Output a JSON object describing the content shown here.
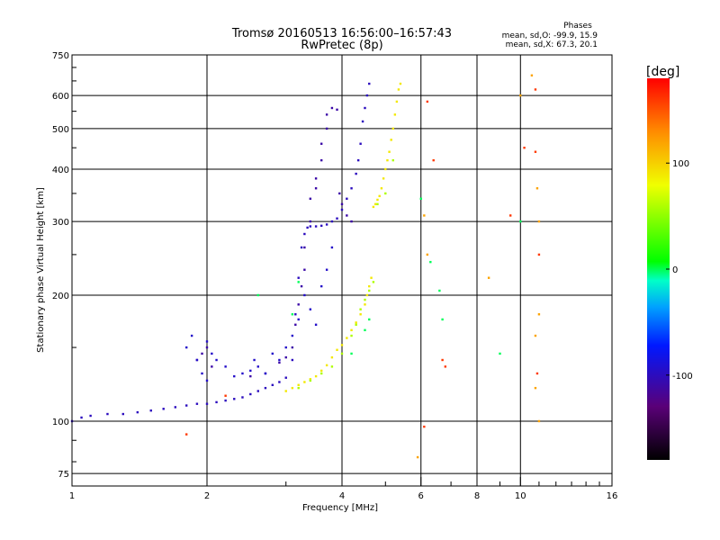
{
  "chart_data": {
    "type": "scatter",
    "title": "Tromsø 20160513 16:56:00–16:57:43",
    "subtitle": "RwPretec (8p)",
    "xlabel": "Frequency [MHz]",
    "ylabel": "Stationary phase Virtual Height [km]",
    "x_scale": "log2",
    "y_scale": "log",
    "xlim": [
      1,
      16
    ],
    "ylim": [
      70,
      750
    ],
    "grid": true,
    "x_ticks": [
      1,
      2,
      4,
      6,
      8,
      10,
      16
    ],
    "x_tick_labels": [
      "1",
      "2",
      "4",
      "6",
      "8",
      "10",
      "16"
    ],
    "y_ticks": [
      75,
      100,
      200,
      300,
      400,
      500,
      600,
      750
    ],
    "y_tick_labels": [
      "75",
      "100",
      "200",
      "300",
      "400",
      "500",
      "600",
      "750"
    ],
    "stats": {
      "heading": "Phases",
      "line1": "mean, sd,O:  -99.9, 15.9",
      "line2": "mean, sd,X:  67.3, 20.1"
    },
    "colorbar": {
      "label": "[deg]",
      "min": -180,
      "max": 180,
      "ticks": [
        100,
        0,
        -100
      ],
      "tick_labels": [
        "100",
        "0",
        "-100"
      ]
    },
    "series": [
      {
        "color_phase": -100,
        "x": [
          1.0,
          1.05,
          1.1,
          1.2,
          1.3,
          1.4,
          1.5,
          1.6,
          1.7,
          1.8,
          1.9,
          2.0,
          2.1,
          2.2,
          2.3,
          2.4,
          2.5,
          2.6,
          2.7,
          2.8,
          2.9,
          3.0,
          3.1,
          3.15,
          3.2,
          3.25,
          3.3,
          3.35,
          3.4,
          3.5,
          3.6,
          3.7,
          3.8,
          3.9,
          4.0,
          4.1,
          4.2,
          4.3,
          4.35,
          4.4,
          4.45,
          4.5,
          4.55,
          4.6
        ],
        "y": [
          100,
          102,
          103,
          104,
          104,
          105,
          106,
          107,
          108,
          109,
          110,
          110,
          111,
          112,
          113,
          114,
          116,
          118,
          120,
          122,
          124,
          127,
          140,
          180,
          220,
          260,
          280,
          290,
          292,
          292,
          293,
          295,
          300,
          305,
          320,
          340,
          360,
          390,
          420,
          460,
          520,
          560,
          600,
          640
        ]
      },
      {
        "color_phase": -110,
        "x": [
          1.9,
          1.95,
          2.0,
          2.05,
          2.5,
          2.7,
          2.9,
          3.0,
          3.1,
          3.15,
          3.2,
          3.25,
          3.3,
          3.3,
          3.4,
          3.4,
          3.5,
          3.5,
          3.6,
          3.6,
          3.7,
          3.7,
          3.8,
          3.9,
          3.95,
          4.0,
          4.1,
          4.2
        ],
        "y": [
          140,
          145,
          150,
          135,
          128,
          130,
          138,
          142,
          150,
          170,
          190,
          210,
          230,
          260,
          300,
          340,
          360,
          380,
          420,
          460,
          500,
          540,
          560,
          555,
          350,
          330,
          310,
          300
        ]
      },
      {
        "color_phase": -95,
        "x": [
          1.8,
          1.85,
          1.9,
          1.95,
          2.0,
          2.0,
          2.05,
          2.1,
          2.2,
          2.3,
          2.4,
          2.5,
          2.55,
          2.6,
          2.7,
          2.8,
          2.9,
          3.0,
          3.1,
          3.2,
          3.3,
          3.4,
          3.5,
          3.6,
          3.7,
          3.8
        ],
        "y": [
          150,
          160,
          140,
          130,
          155,
          125,
          145,
          140,
          135,
          128,
          130,
          132,
          140,
          135,
          130,
          145,
          140,
          150,
          160,
          175,
          200,
          185,
          170,
          210,
          230,
          260
        ]
      },
      {
        "color_phase": 90,
        "x": [
          3.0,
          3.1,
          3.2,
          3.3,
          3.4,
          3.5,
          3.6,
          3.7,
          3.8,
          3.9,
          4.0,
          4.1,
          4.2,
          4.3,
          4.4,
          4.5,
          4.55,
          4.6,
          4.65,
          4.7,
          4.75,
          4.8,
          4.85,
          4.9,
          4.95,
          5.0,
          5.05,
          5.1,
          5.15,
          5.2,
          5.25,
          5.3,
          5.35,
          5.4
        ],
        "y": [
          118,
          120,
          122,
          124,
          126,
          128,
          132,
          136,
          142,
          148,
          152,
          158,
          165,
          172,
          180,
          190,
          200,
          210,
          220,
          325,
          330,
          338,
          345,
          360,
          380,
          400,
          420,
          440,
          470,
          500,
          540,
          580,
          620,
          640
        ]
      },
      {
        "color_phase": 60,
        "x": [
          3.2,
          3.4,
          3.6,
          3.8,
          4.0,
          4.2,
          4.3,
          4.4,
          4.5,
          4.6,
          4.7,
          4.8,
          5.0,
          5.2
        ],
        "y": [
          120,
          125,
          130,
          135,
          145,
          160,
          170,
          185,
          195,
          205,
          215,
          330,
          350,
          420
        ]
      },
      {
        "color_phase": 160,
        "x": [
          1.8,
          2.2,
          6.1,
          6.2,
          6.4,
          6.7,
          6.8,
          9.5,
          10.2,
          10.8,
          10.8,
          10.9,
          11.0
        ],
        "y": [
          93,
          115,
          97,
          580,
          420,
          140,
          135,
          310,
          450,
          620,
          440,
          130,
          250
        ]
      },
      {
        "color_phase": 120,
        "x": [
          5.9,
          6.1,
          6.2,
          8.5,
          10.0,
          10.6,
          10.8,
          10.8,
          10.9,
          11.0,
          11.0,
          11.0
        ],
        "y": [
          82,
          310,
          250,
          220,
          600,
          670,
          160,
          120,
          360,
          180,
          300,
          100
        ]
      },
      {
        "color_phase": 0,
        "x": [
          2.6,
          3.1,
          3.2,
          4.2,
          4.5,
          4.6,
          6.0,
          6.3,
          6.6,
          6.7,
          9.0,
          10.0
        ],
        "y": [
          200,
          180,
          215,
          145,
          165,
          175,
          340,
          240,
          205,
          175,
          145,
          300
        ]
      }
    ]
  }
}
